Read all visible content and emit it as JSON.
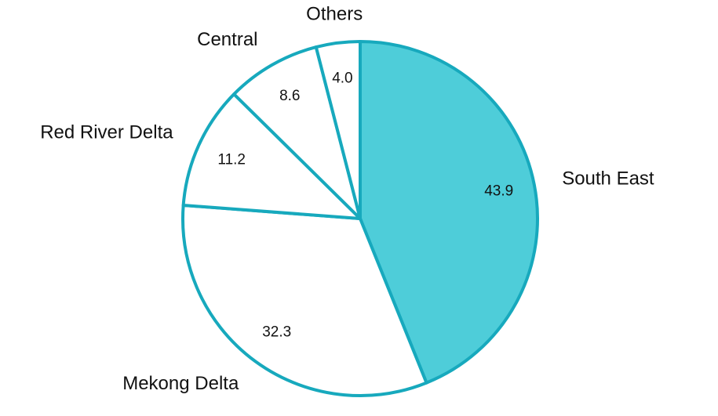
{
  "chart_data": {
    "type": "pie",
    "title": "",
    "slices": [
      {
        "label": "South East",
        "value": 43.9,
        "value_label": "43.9",
        "color": "#4ecdd9"
      },
      {
        "label": "Mekong Delta",
        "value": 32.3,
        "value_label": "32.3",
        "color": "#ffffff"
      },
      {
        "label": "Red River Delta",
        "value": 11.2,
        "value_label": "11.2",
        "color": "#ffffff"
      },
      {
        "label": "Central",
        "value": 8.6,
        "value_label": "8.6",
        "color": "#ffffff"
      },
      {
        "label": "Others",
        "value": 4.0,
        "value_label": "4.0",
        "color": "#ffffff"
      }
    ],
    "start": "top",
    "direction": "clockwise",
    "stroke_color": "#17a9bd",
    "legend": "none"
  }
}
